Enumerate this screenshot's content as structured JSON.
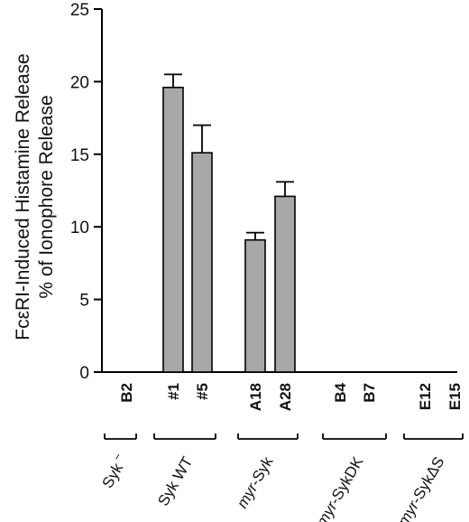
{
  "chart_data": {
    "type": "bar",
    "ylabel_line1": "FcεRI-Induced Histamine Release",
    "ylabel_line2": "% of Ionophore Release",
    "ylim": [
      0,
      25
    ],
    "yticks": [
      "0",
      "5",
      "10",
      "15",
      "20",
      "25"
    ],
    "categories": [
      "B2",
      "#1",
      "#5",
      "A18",
      "A28",
      "B4",
      "B7",
      "E12",
      "E15"
    ],
    "values": [
      0,
      19.6,
      15.1,
      9.1,
      12.1,
      0,
      0,
      0,
      0
    ],
    "errors": [
      0,
      0.9,
      1.9,
      0.5,
      1.0,
      0,
      0,
      0,
      0
    ],
    "groups": [
      {
        "label": "Syk",
        "sup": "−",
        "members": [
          "B2"
        ]
      },
      {
        "label": "Syk WT",
        "members": [
          "#1",
          "#5"
        ]
      },
      {
        "label": "myr-Syk",
        "italic_prefix": "myr",
        "members": [
          "A18",
          "A28"
        ]
      },
      {
        "label": "myr-SykDK",
        "italic_prefix": "myr",
        "members": [
          "B4",
          "B7"
        ]
      },
      {
        "label": "myr-SykΔS",
        "italic_prefix": "myr",
        "members": [
          "E12",
          "E15"
        ]
      }
    ],
    "bar_color": "#a8a8a8",
    "grid": false,
    "legend": "none"
  }
}
